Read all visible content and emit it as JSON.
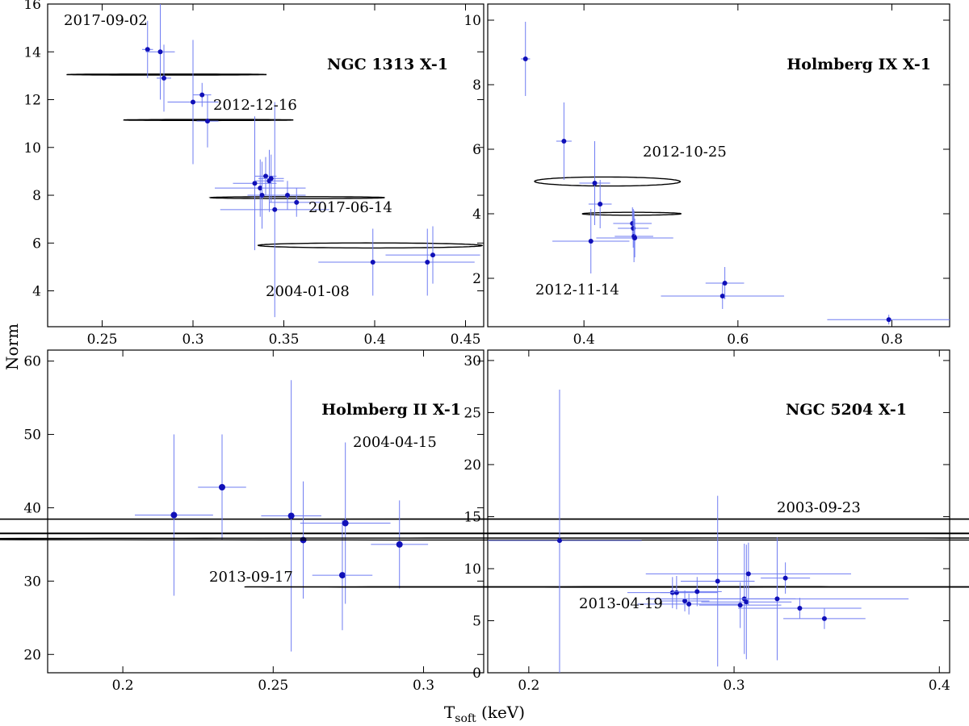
{
  "figure": {
    "ylabel": "Norm",
    "xlabel_main": "T",
    "xlabel_sub": "soft",
    "xlabel_unit": " (keV)"
  },
  "chart_data": [
    {
      "id": "p1",
      "type": "scatter",
      "title": "NGC 1313 X-1",
      "xlim": [
        0.22,
        0.46
      ],
      "ylim": [
        2.5,
        16
      ],
      "xticks": [
        0.25,
        0.3,
        0.35,
        0.4,
        0.45
      ],
      "xtick_labels": [
        "0.25",
        "0.3",
        "0.35",
        "0.4",
        "0.45"
      ],
      "yticks": [
        4,
        6,
        8,
        10,
        12,
        14,
        16
      ],
      "ytick_labels": [
        "4",
        "6",
        "8",
        "10",
        "12",
        "14",
        "16"
      ],
      "points": [
        {
          "x": 0.275,
          "y": 14.1,
          "xerr": 0.003,
          "yerr": 1.2
        },
        {
          "x": 0.282,
          "y": 14.0,
          "xerr": 0.008,
          "yerr": 2.0
        },
        {
          "x": 0.284,
          "y": 12.9,
          "xerr": 0.004,
          "yerr": 1.4
        },
        {
          "x": 0.3,
          "y": 11.9,
          "xerr": 0.014,
          "yerr": 2.6
        },
        {
          "x": 0.305,
          "y": 12.2,
          "xerr": 0.005,
          "yerr": 0.5
        },
        {
          "x": 0.308,
          "y": 11.1,
          "xerr": 0.006,
          "yerr": 1.1
        },
        {
          "x": 0.334,
          "y": 8.5,
          "xerr": 0.012,
          "yerr": 2.8
        },
        {
          "x": 0.337,
          "y": 8.3,
          "xerr": 0.025,
          "yerr": 1.2
        },
        {
          "x": 0.338,
          "y": 8.0,
          "xerr": 0.008,
          "yerr": 1.4
        },
        {
          "x": 0.34,
          "y": 8.8,
          "xerr": 0.006,
          "yerr": 0.8
        },
        {
          "x": 0.342,
          "y": 8.6,
          "xerr": 0.008,
          "yerr": 1.3
        },
        {
          "x": 0.343,
          "y": 8.7,
          "xerr": 0.007,
          "yerr": 1.0
        },
        {
          "x": 0.345,
          "y": 7.4,
          "xerr": 0.03,
          "yerr": 4.5
        },
        {
          "x": 0.352,
          "y": 8.0,
          "xerr": 0.01,
          "yerr": 0.6
        },
        {
          "x": 0.357,
          "y": 7.7,
          "xerr": 0.015,
          "yerr": 0.6
        },
        {
          "x": 0.399,
          "y": 5.2,
          "xerr": 0.03,
          "yerr": 1.4
        },
        {
          "x": 0.429,
          "y": 5.2,
          "xerr": 0.026,
          "yerr": 1.4
        },
        {
          "x": 0.432,
          "y": 5.5,
          "xerr": 0.026,
          "yerr": 1.2
        }
      ],
      "contours": [
        {
          "cx": 0.2855,
          "cy": 13.05,
          "a": 0.022,
          "b": 0.00055,
          "slope": -100
        },
        {
          "cx": 0.3085,
          "cy": 11.15,
          "a": 0.022,
          "b": 0.00055,
          "slope": -85
        },
        {
          "cx": 0.3575,
          "cy": 7.9,
          "a": 0.042,
          "b": 0.001,
          "slope": -48
        },
        {
          "cx": 0.3975,
          "cy": 5.9,
          "a": 0.105,
          "b": 0.0014,
          "slope": -44
        }
      ],
      "annotations": [
        "2017-09-02",
        "2012-12-16",
        "2017-06-14",
        "2004-01-08"
      ]
    },
    {
      "id": "p2",
      "type": "scatter",
      "title": "Holmberg IX X-1",
      "xlim": [
        0.275,
        0.875
      ],
      "ylim": [
        0.5,
        10.5
      ],
      "xticks": [
        0.4,
        0.6,
        0.8
      ],
      "xtick_labels": [
        "0.4",
        "0.6",
        "0.8"
      ],
      "yticks": [
        2,
        4,
        6,
        8,
        10
      ],
      "ytick_labels": [
        "2",
        "4",
        "6",
        "8",
        "10"
      ],
      "points": [
        {
          "x": 0.324,
          "y": 8.8,
          "xerr": 0.006,
          "yerr": 1.15
        },
        {
          "x": 0.374,
          "y": 6.25,
          "xerr": 0.01,
          "yerr": 1.2
        },
        {
          "x": 0.409,
          "y": 3.15,
          "xerr": 0.05,
          "yerr": 1.0
        },
        {
          "x": 0.414,
          "y": 4.95,
          "xerr": 0.02,
          "yerr": 1.3
        },
        {
          "x": 0.421,
          "y": 4.3,
          "xerr": 0.015,
          "yerr": 0.75
        },
        {
          "x": 0.463,
          "y": 3.7,
          "xerr": 0.025,
          "yerr": 0.5
        },
        {
          "x": 0.464,
          "y": 3.55,
          "xerr": 0.02,
          "yerr": 0.6
        },
        {
          "x": 0.465,
          "y": 3.3,
          "xerr": 0.025,
          "yerr": 0.8
        },
        {
          "x": 0.466,
          "y": 3.25,
          "xerr": 0.05,
          "yerr": 0.6
        },
        {
          "x": 0.58,
          "y": 1.45,
          "xerr": 0.08,
          "yerr": 0.4
        },
        {
          "x": 0.583,
          "y": 1.85,
          "xerr": 0.025,
          "yerr": 0.5
        },
        {
          "x": 0.796,
          "y": 0.72,
          "xerr": 0.08,
          "yerr": 0.15
        }
      ],
      "contours": [
        {
          "cx": 0.4305,
          "cy": 5.0,
          "a": 0.14,
          "b": 0.0035,
          "slope": -27
        },
        {
          "cx": 0.462,
          "cy": 4.0,
          "a": 0.045,
          "b": 0.002,
          "slope": -32
        }
      ],
      "annotations": [
        "2012-10-25",
        "2012-11-14"
      ]
    },
    {
      "id": "p3",
      "type": "scatter",
      "title": "Holmberg II X-1",
      "xlim": [
        0.175,
        0.32
      ],
      "ylim": [
        17.5,
        61.5
      ],
      "xticks": [
        0.2,
        0.25,
        0.3
      ],
      "xtick_labels": [
        "0.2",
        "0.25",
        "0.3"
      ],
      "yticks": [
        20,
        30,
        40,
        50,
        60
      ],
      "ytick_labels": [
        "20",
        "30",
        "40",
        "50",
        "60"
      ],
      "points": [
        {
          "x": 0.217,
          "y": 39.0,
          "xerr": 0.013,
          "yerr": 11
        },
        {
          "x": 0.233,
          "y": 42.8,
          "xerr": 0.008,
          "yerr": 7.2
        },
        {
          "x": 0.256,
          "y": 38.9,
          "xerr": 0.01,
          "yerr": 18.5
        },
        {
          "x": 0.26,
          "y": 35.6,
          "xerr": 0.008,
          "yerr": 8
        },
        {
          "x": 0.273,
          "y": 30.8,
          "xerr": 0.01,
          "yerr": 7.5
        },
        {
          "x": 0.274,
          "y": 37.9,
          "xerr": 0.015,
          "yerr": 11
        },
        {
          "x": 0.292,
          "y": 35.0,
          "xerr": 0.0095,
          "yerr": 6
        }
      ],
      "contours": [
        {
          "cx": 0.2535,
          "cy": 38.45,
          "a": 0.0215,
          "b": 0.0013,
          "slope": -1300
        },
        {
          "cx": 0.2925,
          "cy": 36.5,
          "a": 0.03,
          "b": 0.0015,
          "slope": -650
        }
      ],
      "annotations": [
        "2004-04-15",
        "2013-09-17"
      ]
    },
    {
      "id": "p4",
      "type": "scatter",
      "title": "NGC 5204 X-1",
      "xlim": [
        0.18,
        0.405
      ],
      "ylim": [
        0,
        31
      ],
      "xticks": [
        0.2,
        0.3,
        0.4
      ],
      "xtick_labels": [
        "0.2",
        "0.3",
        "0.4"
      ],
      "yticks": [
        0,
        5,
        10,
        15,
        20,
        25,
        30
      ],
      "ytick_labels": [
        "0",
        "5",
        "10",
        "15",
        "20",
        "25",
        "30"
      ],
      "points": [
        {
          "x": 0.215,
          "y": 12.7,
          "xerr": 0.04,
          "yerr": 14.5
        },
        {
          "x": 0.27,
          "y": 7.7,
          "xerr": 0.022,
          "yerr": 1.5
        },
        {
          "x": 0.272,
          "y": 7.7,
          "xerr": 0.008,
          "yerr": 1.6
        },
        {
          "x": 0.276,
          "y": 6.9,
          "xerr": 0.012,
          "yerr": 1.0
        },
        {
          "x": 0.278,
          "y": 6.6,
          "xerr": 0.025,
          "yerr": 1.0
        },
        {
          "x": 0.282,
          "y": 7.8,
          "xerr": 0.012,
          "yerr": 1.4
        },
        {
          "x": 0.292,
          "y": 8.8,
          "xerr": 0.018,
          "yerr": 8.2
        },
        {
          "x": 0.303,
          "y": 6.5,
          "xerr": 0.02,
          "yerr": 2.2
        },
        {
          "x": 0.305,
          "y": 7.1,
          "xerr": 0.025,
          "yerr": 5.3
        },
        {
          "x": 0.306,
          "y": 6.8,
          "xerr": 0.022,
          "yerr": 5.5
        },
        {
          "x": 0.307,
          "y": 9.5,
          "xerr": 0.05,
          "yerr": 3.0
        },
        {
          "x": 0.321,
          "y": 7.1,
          "xerr": 0.064,
          "yerr": 5.9
        },
        {
          "x": 0.325,
          "y": 9.1,
          "xerr": 0.012,
          "yerr": 1.5
        },
        {
          "x": 0.332,
          "y": 6.2,
          "xerr": 0.03,
          "yerr": 1.0
        },
        {
          "x": 0.344,
          "y": 5.2,
          "xerr": 0.02,
          "yerr": 1.0
        }
      ],
      "contours": [
        {
          "cx": 0.3095,
          "cy": 12.85,
          "a": 0.097,
          "b": 0.004,
          "slope": -110
        },
        {
          "cx": 0.2715,
          "cy": 8.25,
          "a": 0.024,
          "b": 0.0015,
          "slope": -140
        }
      ],
      "annotations": [
        "2003-09-23",
        "2013-04-19"
      ]
    }
  ]
}
